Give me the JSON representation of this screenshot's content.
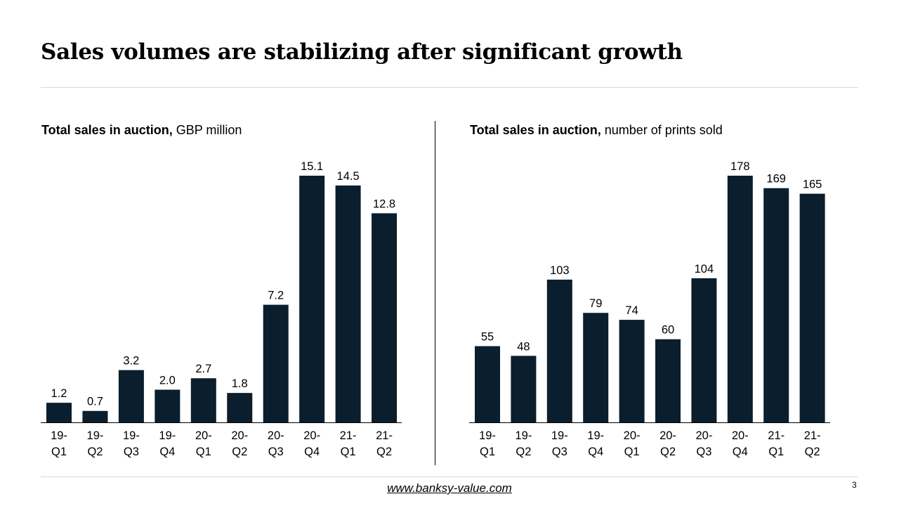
{
  "title": "Sales volumes are stabilizing after significant growth",
  "colors": {
    "bar": "#0a1e2d",
    "rule": "#d9d9d9"
  },
  "chart_data": [
    {
      "type": "bar",
      "title_bold": "Total sales in auction,",
      "title_rest": " GBP million",
      "categories": [
        [
          "19-",
          "Q1"
        ],
        [
          "19-",
          "Q2"
        ],
        [
          "19-",
          "Q3"
        ],
        [
          "19-",
          "Q4"
        ],
        [
          "20-",
          "Q1"
        ],
        [
          "20-",
          "Q2"
        ],
        [
          "20-",
          "Q3"
        ],
        [
          "20-",
          "Q4"
        ],
        [
          "21-",
          "Q1"
        ],
        [
          "21-",
          "Q2"
        ]
      ],
      "values": [
        1.2,
        0.7,
        3.2,
        2.0,
        2.7,
        1.8,
        7.2,
        15.1,
        14.5,
        12.8
      ],
      "labels": [
        "1.2",
        "0.7",
        "3.2",
        "2.0",
        "2.7",
        "1.8",
        "7.2",
        "15.1",
        "14.5",
        "12.8"
      ],
      "ylim": [
        0,
        15.1
      ]
    },
    {
      "type": "bar",
      "title_bold": "Total sales in auction,",
      "title_rest": " number  of prints sold",
      "categories": [
        [
          "19-",
          "Q1"
        ],
        [
          "19-",
          "Q2"
        ],
        [
          "19-",
          "Q3"
        ],
        [
          "19-",
          "Q4"
        ],
        [
          "20-",
          "Q1"
        ],
        [
          "20-",
          "Q2"
        ],
        [
          "20-",
          "Q3"
        ],
        [
          "20-",
          "Q4"
        ],
        [
          "21-",
          "Q1"
        ],
        [
          "21-",
          "Q2"
        ]
      ],
      "values": [
        55,
        48,
        103,
        79,
        74,
        60,
        104,
        178,
        169,
        165
      ],
      "labels": [
        "55",
        "48",
        "103",
        "79",
        "74",
        "60",
        "104",
        "178",
        "169",
        "165"
      ],
      "ylim": [
        0,
        178
      ]
    }
  ],
  "footer": {
    "link": "www.banksy-value.com",
    "page_number": "3"
  }
}
